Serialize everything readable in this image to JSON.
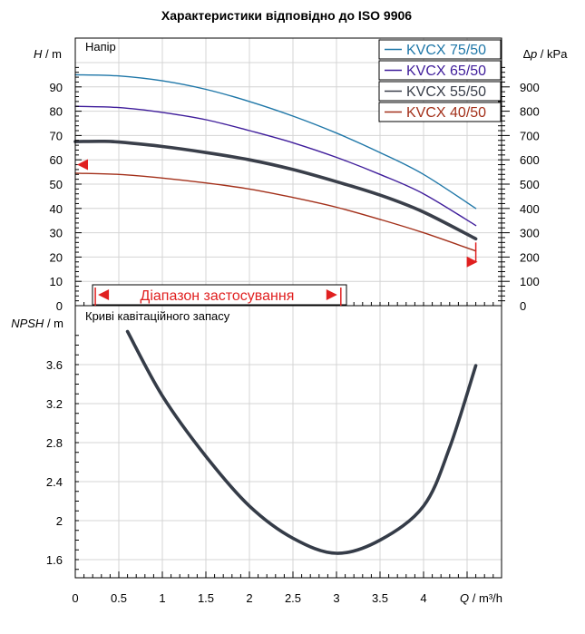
{
  "title": "Характеристики відповідно до ISO 9906",
  "chart_data": [
    {
      "type": "line",
      "panel_label": "Напір",
      "ylabel_left": {
        "var": "H",
        "unit": "m"
      },
      "ylabel_right": {
        "var": "∆p",
        "unit": "kPa"
      },
      "ylim_left": [
        0,
        100
      ],
      "ylim_right": [
        0,
        1000
      ],
      "xlim": [
        0,
        4.9
      ],
      "yticks_left": [
        "0",
        "10",
        "20",
        "30",
        "40",
        "50",
        "60",
        "70",
        "80",
        "90"
      ],
      "yticks_right": [
        "0",
        "100",
        "200",
        "300",
        "400",
        "500",
        "600",
        "700",
        "800",
        "900"
      ],
      "legend": "top-right",
      "grid": true,
      "series": [
        {
          "name": "KVCX 75/50",
          "color": "#1f77a8",
          "width": 1.4,
          "x": [
            0,
            0.5,
            1,
            1.5,
            2,
            2.5,
            3,
            3.5,
            4,
            4.6
          ],
          "y": [
            95,
            94.5,
            92.5,
            89,
            84,
            78,
            71,
            63,
            54,
            40
          ]
        },
        {
          "name": "KVCX 65/50",
          "color": "#3f1d9b",
          "width": 1.4,
          "x": [
            0,
            0.5,
            1,
            1.5,
            2,
            2.5,
            3,
            3.5,
            4,
            4.6
          ],
          "y": [
            82,
            81.5,
            79.5,
            76.5,
            72,
            67,
            61,
            54,
            46,
            33
          ]
        },
        {
          "name": "KVCX 55/50",
          "color": "#3a3f4a",
          "width": 3.6,
          "x": [
            0,
            0.3,
            0.5,
            1,
            1.5,
            2,
            2.5,
            3,
            3.5,
            4,
            4.6
          ],
          "y": [
            67.5,
            67.6,
            67.3,
            65.5,
            63,
            60,
            56,
            51,
            45.5,
            38.5,
            27.5
          ]
        },
        {
          "name": "KVCX 40/50",
          "color": "#a3301a",
          "width": 1.4,
          "x": [
            0,
            0.5,
            1,
            1.5,
            2,
            2.5,
            3,
            3.5,
            4,
            4.6
          ],
          "y": [
            54.5,
            54,
            52.5,
            50.5,
            48,
            44.5,
            40.5,
            35.5,
            30,
            22.5
          ]
        }
      ],
      "range_label": "Діапазон застосування",
      "range": [
        0.23,
        3.05
      ],
      "markers": [
        {
          "x": 0,
          "y": 58,
          "dir": "left"
        },
        {
          "x": 4.6,
          "y": 18,
          "dir": "right"
        }
      ]
    },
    {
      "type": "line",
      "panel_label": "Криві кавітаційного запасу",
      "ylabel": {
        "var": "NPSH",
        "unit": "m"
      },
      "xlabel": {
        "var": "Q",
        "unit": "m³/h"
      },
      "xlim": [
        0,
        4.9
      ],
      "ylim": [
        1.45,
        4.0
      ],
      "xticks": [
        "0",
        "0.5",
        "1",
        "1.5",
        "2",
        "2.5",
        "3",
        "3.5",
        "4"
      ],
      "yticks": [
        "1.6",
        "2",
        "2.4",
        "2.8",
        "3.2",
        "3.6"
      ],
      "grid": true,
      "series": [
        {
          "color": "#353c48",
          "width": 3.6,
          "x": [
            0.6,
            1,
            1.5,
            2,
            2.5,
            3,
            3.5,
            4,
            4.3,
            4.6
          ],
          "y": [
            3.94,
            3.28,
            2.66,
            2.15,
            1.82,
            1.665,
            1.8,
            2.15,
            2.75,
            3.59
          ]
        }
      ]
    }
  ]
}
